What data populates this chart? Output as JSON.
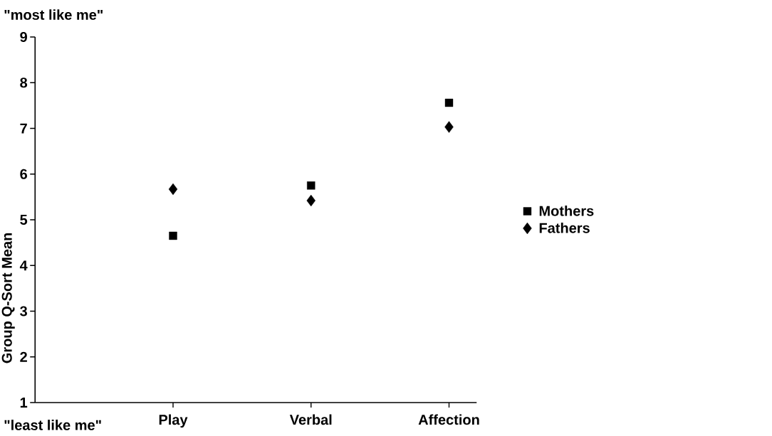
{
  "chart_data": {
    "type": "scatter",
    "ylabel": "Group Q-Sort Mean",
    "categories": [
      "Play",
      "Verbal",
      "Affection"
    ],
    "series": [
      {
        "name": "Mothers",
        "color": "#000000",
        "marker": "square",
        "values": [
          4.65,
          5.75,
          7.56
        ]
      },
      {
        "name": "Fathers",
        "color": "#000000",
        "marker": "diamond",
        "values": [
          5.67,
          5.42,
          7.03
        ]
      }
    ],
    "ylim": [
      1,
      9
    ],
    "yticks": [
      1,
      2,
      3,
      4,
      5,
      6,
      7,
      8,
      9
    ],
    "grid": false,
    "legend": "right",
    "annotations": [
      "\"most like me\"",
      "\"least like me\""
    ]
  }
}
